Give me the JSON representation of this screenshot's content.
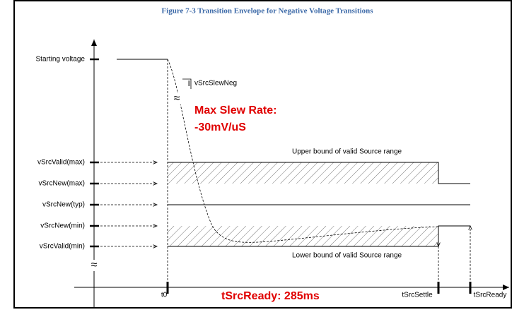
{
  "title": "Figure 7-3 Transition Envelope for Negative Voltage Transitions",
  "y_labels": [
    "Starting voltage",
    "vSrcValid(max)",
    "vSrcNew(max)",
    "vSrcNew(typ)",
    "vSrcNew(min)",
    "vSrcValid(min)"
  ],
  "x_labels": [
    "t0",
    "tSrcSettle",
    "tSrcReady"
  ],
  "annotations": {
    "slew": "vSrcSlewNeg",
    "max_slew_1": "Max Slew Rate:",
    "max_slew_2": "-30mV/uS",
    "upper": "Upper bound of valid Source range",
    "lower": "Lower bound of valid Source range",
    "ready": "tSrcReady: 285ms"
  }
}
